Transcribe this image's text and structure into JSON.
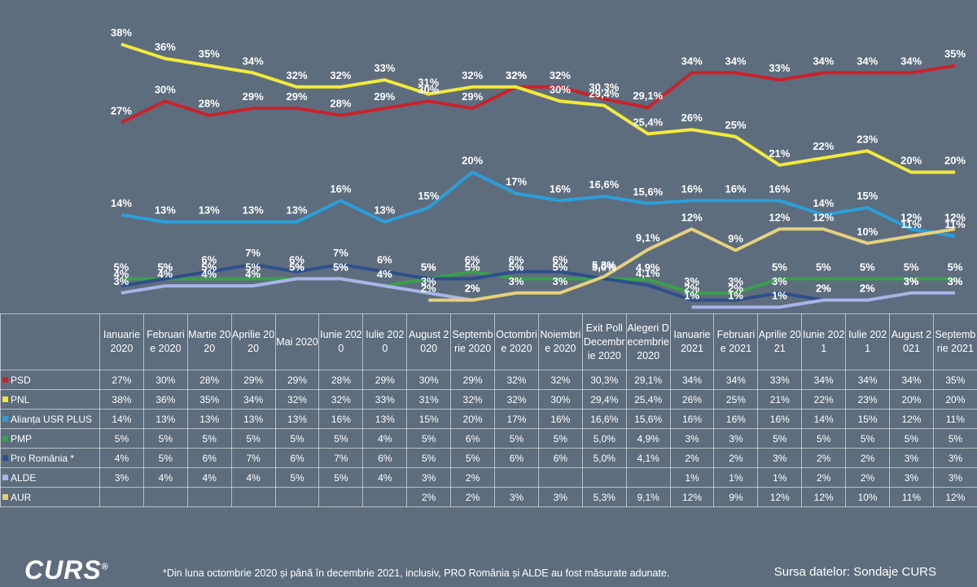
{
  "chart_data": {
    "type": "line",
    "categories": [
      "Ianuarie 2020",
      "Februarie 2020",
      "Martie 2020",
      "Aprilie 2020",
      "Mai 2020",
      "Iunie 2020",
      "Iulie 2020",
      "August 2020",
      "Septembrie 2020",
      "Octombrie 2020",
      "Noiembrie 2020",
      "Exit Poll Decembrie 2020",
      "Alegeri Decembrie 2020",
      "Ianuarie 2021",
      "Februarie 2021",
      "Aprilie 2021",
      "Iunie 2021",
      "Iulie 2021",
      "August 2021",
      "Septembrie 2021"
    ],
    "ylim": [
      0,
      40
    ],
    "series": [
      {
        "name": "PSD",
        "color": "#c9222c",
        "values": [
          27,
          30,
          28,
          29,
          29,
          28,
          29,
          30,
          29,
          32,
          32,
          30.3,
          29.1,
          34,
          34,
          33,
          34,
          34,
          34,
          35
        ],
        "value_labels": [
          "27%",
          "30%",
          "28%",
          "29%",
          "29%",
          "28%",
          "29%",
          "30%",
          "29%",
          "32%",
          "32%",
          "30,3%",
          "29,1%",
          "34%",
          "34%",
          "33%",
          "34%",
          "34%",
          "34%",
          "35%"
        ]
      },
      {
        "name": "PNL",
        "color": "#f1ea3c",
        "values": [
          38,
          36,
          35,
          34,
          32,
          32,
          33,
          31,
          32,
          32,
          30,
          29.4,
          25.4,
          26,
          25,
          21,
          22,
          23,
          20,
          20
        ],
        "value_labels": [
          "38%",
          "36%",
          "35%",
          "34%",
          "32%",
          "32%",
          "33%",
          "31%",
          "32%",
          "32%",
          "30%",
          "29,4%",
          "25,4%",
          "26%",
          "25%",
          "21%",
          "22%",
          "23%",
          "20%",
          "20%"
        ]
      },
      {
        "name": "Alianța USR PLUS",
        "color": "#2b9fd9",
        "values": [
          14,
          13,
          13,
          13,
          13,
          16,
          13,
          15,
          20,
          17,
          16,
          16.6,
          15.6,
          16,
          16,
          16,
          14,
          15,
          12,
          11
        ],
        "value_labels": [
          "14%",
          "13%",
          "13%",
          "13%",
          "13%",
          "16%",
          "13%",
          "15%",
          "20%",
          "17%",
          "16%",
          "16,6%",
          "15,6%",
          "16%",
          "16%",
          "16%",
          "14%",
          "15%",
          "12%",
          "11%"
        ]
      },
      {
        "name": "PMP",
        "color": "#3b9f4b",
        "values": [
          5,
          5,
          5,
          5,
          5,
          5,
          4,
          5,
          6,
          5,
          5,
          5.0,
          4.9,
          3,
          3,
          5,
          5,
          5,
          5,
          5
        ],
        "value_labels": [
          "5%",
          "5%",
          "5%",
          "5%",
          "5%",
          "5%",
          "4%",
          "5%",
          "6%",
          "5%",
          "5%",
          "5,0%",
          "4,9%",
          "3%",
          "3%",
          "5%",
          "5%",
          "5%",
          "5%",
          "5%"
        ]
      },
      {
        "name": "Pro România *",
        "color": "#2f4f8b",
        "values": [
          4,
          5,
          6,
          7,
          6,
          7,
          6,
          5,
          5,
          6,
          6,
          5.0,
          4.1,
          2,
          2,
          3,
          2,
          2,
          3,
          3
        ],
        "value_labels": [
          "4%",
          "5%",
          "6%",
          "7%",
          "6%",
          "7%",
          "6%",
          "5%",
          "5%",
          "6%",
          "6%",
          "5,0%",
          "4,1%",
          "2%",
          "2%",
          "3%",
          "2%",
          "2%",
          "3%",
          "3%"
        ]
      },
      {
        "name": "ALDE",
        "color": "#a9b4e6",
        "values": [
          3,
          4,
          4,
          4,
          5,
          5,
          4,
          3,
          2,
          null,
          null,
          null,
          null,
          1,
          1,
          1,
          2,
          2,
          3,
          3
        ],
        "value_labels": [
          "3%",
          "4%",
          "4%",
          "4%",
          "5%",
          "5%",
          "4%",
          "3%",
          "2%",
          null,
          null,
          null,
          null,
          "1%",
          "1%",
          "1%",
          "2%",
          "2%",
          "3%",
          "3%"
        ]
      },
      {
        "name": "AUR",
        "color": "#e6d07c",
        "values": [
          null,
          null,
          null,
          null,
          null,
          null,
          null,
          2,
          2,
          3,
          3,
          5.3,
          9.1,
          12,
          9,
          12,
          12,
          10,
          11,
          12
        ],
        "value_labels": [
          null,
          null,
          null,
          null,
          null,
          null,
          null,
          "2%",
          "2%",
          "3%",
          "3%",
          "5,3%",
          "9,1%",
          "12%",
          "9%",
          "12%",
          "12%",
          "10%",
          "11%",
          "12%"
        ]
      }
    ]
  },
  "footnote": "*Din luna octombrie 2020 și până în decembrie 2021, inclusiv, PRO România și ALDE au fost măsurate adunate.",
  "source": "Sursa datelor: Sondaje CURS",
  "logo": "CURS"
}
